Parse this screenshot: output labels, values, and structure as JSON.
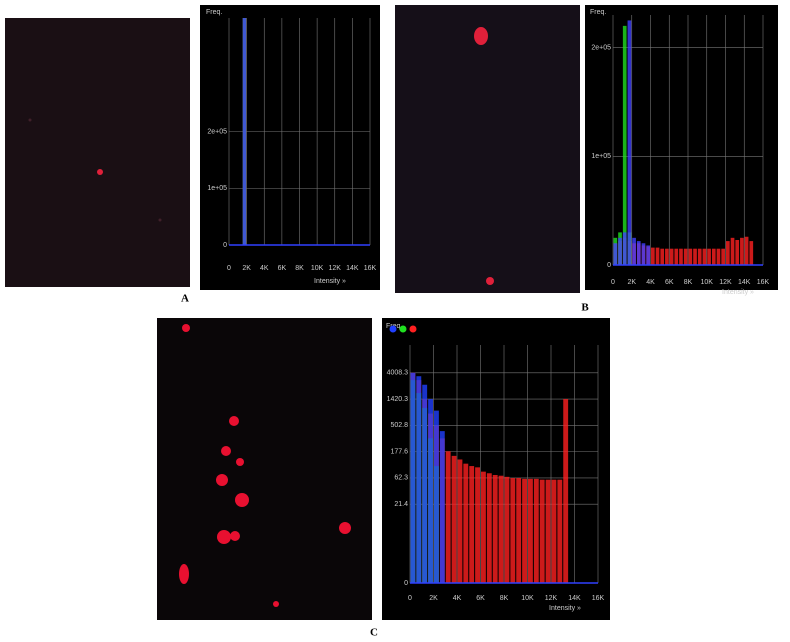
{
  "figure": {
    "panel_labels": [
      "A",
      "B",
      "C"
    ],
    "histograms": [
      {
        "type": "histogram",
        "ylabel": "Freq.",
        "xlabel": "Intensity »",
        "yscale": "linear",
        "bins": [
          0,
          500,
          1000,
          1500,
          2000,
          2500,
          3000,
          3500,
          4000,
          4500,
          5000,
          5500,
          6000,
          6500,
          7000,
          7500,
          8000,
          8500,
          9000,
          9500,
          10000,
          10500,
          11000,
          11500,
          12000,
          12500,
          13000,
          13500,
          14000,
          14500,
          15000,
          15500,
          16000
        ],
        "xlim": [
          0,
          16000
        ],
        "xticks": [
          0,
          {
            "value": 2000,
            "label": "2K"
          },
          {
            "value": 4000,
            "label": "4K"
          },
          {
            "value": 6000,
            "label": "6K"
          },
          {
            "value": 8000,
            "label": "8K"
          },
          {
            "value": 10000,
            "label": "10K"
          },
          {
            "value": 12000,
            "label": "12K"
          },
          {
            "value": 14000,
            "label": "14K"
          },
          {
            "value": 16000,
            "label": "16K"
          }
        ],
        "ylim": [
          0,
          400000
        ],
        "yticks": [
          0,
          {
            "value": 100000,
            "label": "1e+05"
          },
          {
            "value": 200000,
            "label": "2e+05"
          }
        ],
        "series": [
          {
            "color": "#ff2020",
            "values": [
              0,
              0,
              0,
              400000,
              0,
              0,
              0,
              0,
              0,
              0,
              0,
              0,
              0,
              0,
              0,
              0,
              0,
              0,
              0,
              0,
              0,
              0,
              0,
              0,
              0,
              0,
              0,
              0,
              0,
              0,
              0,
              0
            ]
          },
          {
            "color": "#20e020",
            "values": [
              0,
              0,
              0,
              400000,
              0,
              0,
              0,
              0,
              0,
              0,
              0,
              0,
              0,
              0,
              0,
              0,
              0,
              0,
              0,
              0,
              0,
              0,
              0,
              0,
              0,
              0,
              0,
              0,
              0,
              0,
              0,
              0
            ]
          },
          {
            "color": "#4040ff",
            "values": [
              0,
              0,
              0,
              400000,
              0,
              0,
              0,
              0,
              0,
              0,
              0,
              0,
              0,
              0,
              0,
              0,
              0,
              0,
              0,
              0,
              0,
              0,
              0,
              0,
              0,
              0,
              0,
              0,
              0,
              0,
              0,
              0
            ]
          }
        ]
      },
      {
        "type": "histogram",
        "ylabel": "Freq.",
        "xlabel": "Intensity »",
        "yscale": "linear",
        "bins": [
          0,
          500,
          1000,
          1500,
          2000,
          2500,
          3000,
          3500,
          4000,
          4500,
          5000,
          5500,
          6000,
          6500,
          7000,
          7500,
          8000,
          8500,
          9000,
          9500,
          10000,
          10500,
          11000,
          11500,
          12000,
          12500,
          13000,
          13500,
          14000,
          14500,
          15000,
          15500,
          16000
        ],
        "xlim": [
          0,
          16000
        ],
        "xticks": [
          0,
          {
            "value": 2000,
            "label": "2K"
          },
          {
            "value": 4000,
            "label": "4K"
          },
          {
            "value": 6000,
            "label": "6K"
          },
          {
            "value": 8000,
            "label": "8K"
          },
          {
            "value": 10000,
            "label": "10K"
          },
          {
            "value": 12000,
            "label": "12K"
          },
          {
            "value": 14000,
            "label": "14K"
          },
          {
            "value": 16000,
            "label": "16K"
          }
        ],
        "ylim": [
          0,
          230000
        ],
        "yticks": [
          0,
          {
            "value": 100000,
            "label": "1e+05"
          },
          {
            "value": 200000,
            "label": "2e+05"
          }
        ],
        "series": [
          {
            "color": "#ff2020",
            "values": [
              20000,
              22000,
              25000,
              22000,
              20000,
              20000,
              18000,
              17000,
              16000,
              16000,
              15000,
              15000,
              15000,
              15000,
              15000,
              15000,
              15000,
              15000,
              15000,
              15000,
              15000,
              15000,
              15000,
              15000,
              22000,
              25000,
              23000,
              25000,
              26000,
              22000,
              0,
              0
            ]
          },
          {
            "color": "#20e020",
            "values": [
              25000,
              30000,
              220000,
              30000,
              0,
              0,
              0,
              0,
              0,
              0,
              0,
              0,
              0,
              0,
              0,
              0,
              0,
              0,
              0,
              0,
              0,
              0,
              0,
              0,
              0,
              0,
              0,
              0,
              0,
              0,
              0,
              0
            ]
          },
          {
            "color": "#4040ff",
            "values": [
              20000,
              25000,
              30000,
              225000,
              25000,
              22000,
              20000,
              18000,
              0,
              0,
              0,
              0,
              0,
              0,
              0,
              0,
              0,
              0,
              0,
              0,
              0,
              0,
              0,
              0,
              0,
              0,
              0,
              0,
              0,
              0,
              0,
              0
            ]
          }
        ]
      },
      {
        "type": "histogram",
        "ylabel": "Freq.",
        "xlabel": "Intensity »",
        "yscale": "log1p",
        "legend": [
          "blue",
          "green",
          "red"
        ],
        "bins": [
          0,
          500,
          1000,
          1500,
          2000,
          2500,
          3000,
          3500,
          4000,
          4500,
          5000,
          5500,
          6000,
          6500,
          7000,
          7500,
          8000,
          8500,
          9000,
          9500,
          10000,
          10500,
          11000,
          11500,
          12000,
          12500,
          13000,
          13500,
          14000,
          14500,
          15000,
          15500,
          16000
        ],
        "xlim": [
          0,
          16000
        ],
        "xticks": [
          0,
          {
            "value": 2000,
            "label": "2K"
          },
          {
            "value": 4000,
            "label": "4K"
          },
          {
            "value": 6000,
            "label": "6K"
          },
          {
            "value": 8000,
            "label": "8K"
          },
          {
            "value": 10000,
            "label": "10K"
          },
          {
            "value": 12000,
            "label": "12K"
          },
          {
            "value": 14000,
            "label": "14K"
          },
          {
            "value": 16000,
            "label": "16K"
          }
        ],
        "ylim": [
          0,
          12000
        ],
        "yticks": [
          0,
          21.4,
          62.3,
          177.6,
          502.8,
          1420.3,
          4008.3
        ],
        "series": [
          {
            "color": "#ff2020",
            "values": [
              4008,
              3000,
              1420,
              800,
              500,
              300,
              180,
              150,
              130,
              110,
              100,
              95,
              80,
              75,
              70,
              68,
              65,
              62,
              62,
              60,
              60,
              60,
              58,
              58,
              58,
              58,
              1420,
              0,
              0,
              0,
              0,
              0
            ]
          },
          {
            "color": "#20e020",
            "values": [
              3000,
              1800,
              1000,
              300,
              100,
              0,
              0,
              0,
              0,
              0,
              0,
              0,
              0,
              0,
              0,
              0,
              0,
              0,
              0,
              0,
              0,
              0,
              0,
              0,
              0,
              0,
              0,
              0,
              0,
              0,
              0,
              0
            ]
          },
          {
            "color": "#2040ff",
            "values": [
              4008,
              3500,
              2500,
              1420,
              900,
              400,
              0,
              0,
              0,
              0,
              0,
              0,
              0,
              0,
              0,
              0,
              0,
              0,
              0,
              0,
              0,
              0,
              0,
              0,
              0,
              0,
              0,
              0,
              0,
              0,
              0,
              0
            ]
          }
        ]
      }
    ]
  }
}
